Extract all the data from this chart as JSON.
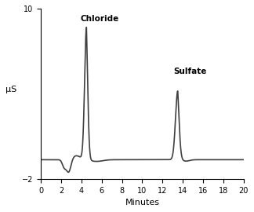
{
  "title": "",
  "xlabel": "Minutes",
  "ylabel": "μS",
  "xlim": [
    0,
    20
  ],
  "ylim": [
    -2,
    10
  ],
  "xticks": [
    0,
    2,
    4,
    6,
    8,
    10,
    12,
    14,
    16,
    18,
    20
  ],
  "yticks": [
    -2,
    10
  ],
  "line_color": "#404040",
  "line_width": 1.2,
  "background_color": "#ffffff",
  "chloride_label": "Chloride",
  "sulfate_label": "Sulfate",
  "baseline": -0.65
}
